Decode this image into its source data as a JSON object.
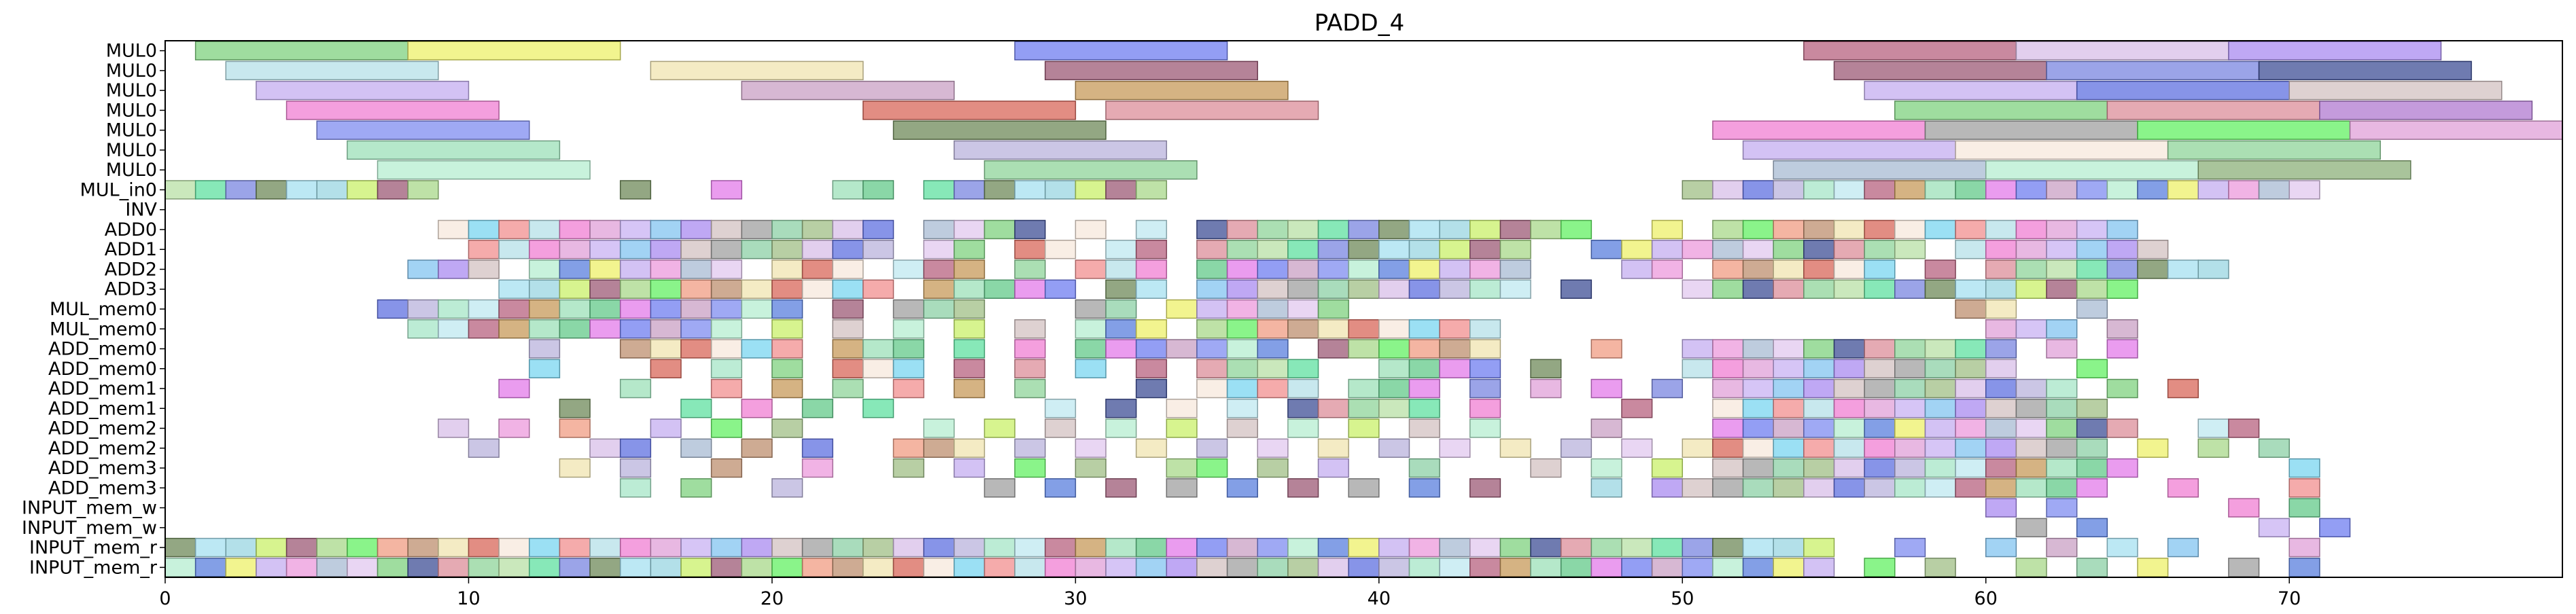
{
  "chart_data": {
    "type": "gantt",
    "title": "PADD_4",
    "xlabel": "",
    "ylabel": "",
    "xlim": [
      0,
      79
    ],
    "xticks": [
      0,
      10,
      20,
      30,
      40,
      50,
      60,
      70
    ],
    "grid": false,
    "legend": "none",
    "rows": [
      "MUL0",
      "MUL0",
      "MUL0",
      "MUL0",
      "MUL0",
      "MUL0",
      "MUL0",
      "MUL_in0",
      "INV",
      "ADD0",
      "ADD1",
      "ADD2",
      "ADD3",
      "MUL_mem0",
      "MUL_mem0",
      "ADD_mem0",
      "ADD_mem0",
      "ADD_mem1",
      "ADD_mem1",
      "ADD_mem2",
      "ADD_mem2",
      "ADD_mem3",
      "ADD_mem3",
      "INPUT_mem_w",
      "INPUT_mem_w",
      "INPUT_mem_r",
      "INPUT_mem_r"
    ],
    "palette": [
      "#7fd17f",
      "#eef06a",
      "#6f7ef0",
      "#b7627f",
      "#d8bfe8",
      "#a98bf0",
      "#b5e0e8",
      "#f0e4b0",
      "#9c5a75",
      "#7a86e0",
      "#3f4f96",
      "#c4aef0",
      "#c9a0c4",
      "#c79a5a",
      "#5f70e0",
      "#d3c2c2",
      "#f07fd3",
      "#d8675a",
      "#a8d889",
      "#6f8a5a",
      "#dc8e99",
      "#ec99dc",
      "#7f8cf0",
      "#9ce0b8",
      "#b9b3dc",
      "#a0a0a0",
      "#e0a0d8",
      "#f7e8dc",
      "#63f063",
      "#a6e0f0",
      "#8fd49a",
      "#a8bbd3",
      "#b6eed0",
      "#63c98a",
      "#a6e6c7",
      "#8cd0a6",
      "#c8b1f3",
      "#7ad5f0",
      "#f09c83",
      "#99d6e2",
      "#b8e0a6",
      "#e2c8ef",
      "#5a7fde",
      "#e37bea",
      "#bfe8f0",
      "#a0bf86",
      "#83c4f0",
      "#f28f8f",
      "#bd8f6f",
      "#c9f06a",
      "#5fe0a0"
    ],
    "bars": [
      {
        "row": 0,
        "start": 1,
        "end": 8,
        "color": "#7fd17f"
      },
      {
        "row": 0,
        "start": 8,
        "end": 15,
        "color": "#eef06a"
      },
      {
        "row": 0,
        "start": 28,
        "end": 35,
        "color": "#6f7ef0"
      },
      {
        "row": 0,
        "start": 54,
        "end": 61,
        "color": "#b7627f"
      },
      {
        "row": 0,
        "start": 61,
        "end": 68,
        "color": "#d8bfe8"
      },
      {
        "row": 0,
        "start": 68,
        "end": 75,
        "color": "#a98bf0"
      },
      {
        "row": 1,
        "start": 2,
        "end": 9,
        "color": "#b5e0e8"
      },
      {
        "row": 1,
        "start": 16,
        "end": 23,
        "color": "#f0e4b0"
      },
      {
        "row": 1,
        "start": 29,
        "end": 36,
        "color": "#9c5a75"
      },
      {
        "row": 1,
        "start": 55,
        "end": 62,
        "color": "#9c5a75"
      },
      {
        "row": 1,
        "start": 62,
        "end": 69,
        "color": "#7a86e0"
      },
      {
        "row": 1,
        "start": 69,
        "end": 76,
        "color": "#3f4f96"
      },
      {
        "row": 2,
        "start": 3,
        "end": 10,
        "color": "#c4aef0"
      },
      {
        "row": 2,
        "start": 19,
        "end": 26,
        "color": "#c9a0c4"
      },
      {
        "row": 2,
        "start": 30,
        "end": 37,
        "color": "#c79a5a"
      },
      {
        "row": 2,
        "start": 56,
        "end": 63,
        "color": "#c4aef0"
      },
      {
        "row": 2,
        "start": 63,
        "end": 70,
        "color": "#5f70e0"
      },
      {
        "row": 2,
        "start": 70,
        "end": 77,
        "color": "#d3c2c2"
      },
      {
        "row": 3,
        "start": 4,
        "end": 11,
        "color": "#f07fd3"
      },
      {
        "row": 3,
        "start": 23,
        "end": 30,
        "color": "#d8675a"
      },
      {
        "row": 3,
        "start": 31,
        "end": 38,
        "color": "#dc8e99"
      },
      {
        "row": 3,
        "start": 57,
        "end": 64,
        "color": "#7fd17f"
      },
      {
        "row": 3,
        "start": 64,
        "end": 71,
        "color": "#dc8e99"
      },
      {
        "row": 3,
        "start": 71,
        "end": 78,
        "color": "#b07ad0"
      },
      {
        "row": 4,
        "start": 5,
        "end": 12,
        "color": "#7f8cf0"
      },
      {
        "row": 4,
        "start": 24,
        "end": 31,
        "color": "#6f8a5a"
      },
      {
        "row": 4,
        "start": 51,
        "end": 58,
        "color": "#f07fd3"
      },
      {
        "row": 4,
        "start": 58,
        "end": 65,
        "color": "#a0a0a0"
      },
      {
        "row": 4,
        "start": 65,
        "end": 72,
        "color": "#63f063"
      },
      {
        "row": 4,
        "start": 72,
        "end": 79,
        "color": "#e0a0d8"
      },
      {
        "row": 5,
        "start": 6,
        "end": 13,
        "color": "#9ce0b8"
      },
      {
        "row": 5,
        "start": 26,
        "end": 33,
        "color": "#b9b3dc"
      },
      {
        "row": 5,
        "start": 52,
        "end": 59,
        "color": "#c4aef0"
      },
      {
        "row": 5,
        "start": 59,
        "end": 66,
        "color": "#f7e8dc"
      },
      {
        "row": 5,
        "start": 66,
        "end": 73,
        "color": "#8fd49a"
      },
      {
        "row": 6,
        "start": 7,
        "end": 14,
        "color": "#b6eed0"
      },
      {
        "row": 6,
        "start": 27,
        "end": 34,
        "color": "#8fd49a"
      },
      {
        "row": 6,
        "start": 53,
        "end": 60,
        "color": "#a8bbd3"
      },
      {
        "row": 6,
        "start": 60,
        "end": 67,
        "color": "#b6eed0"
      },
      {
        "row": 6,
        "start": 67,
        "end": 74,
        "color": "#8cb07a"
      }
    ],
    "cells_per_row": [
      [],
      [],
      [],
      [],
      [],
      [],
      [],
      [
        0,
        1,
        2,
        3,
        4,
        5,
        6,
        7,
        8,
        15,
        18,
        22,
        23,
        25,
        26,
        27,
        28,
        29,
        30,
        31,
        32,
        50,
        51,
        52,
        53,
        54,
        55,
        56,
        57,
        58,
        59,
        60,
        61,
        62,
        63,
        64,
        65,
        66,
        67,
        68,
        69,
        70
      ],
      [],
      [
        9,
        10,
        11,
        12,
        13,
        14,
        15,
        16,
        17,
        18,
        19,
        20,
        21,
        22,
        23,
        25,
        26,
        27,
        28,
        30,
        32,
        34,
        35,
        36,
        37,
        38,
        39,
        40,
        41,
        42,
        43,
        44,
        45,
        46,
        49,
        51,
        52,
        53,
        54,
        55,
        56,
        57,
        58,
        59,
        60,
        61,
        62,
        63,
        64
      ],
      [
        10,
        11,
        12,
        13,
        14,
        15,
        16,
        17,
        18,
        19,
        20,
        21,
        22,
        23,
        25,
        26,
        28,
        29,
        31,
        32,
        34,
        35,
        36,
        37,
        38,
        39,
        40,
        41,
        42,
        43,
        44,
        47,
        48,
        49,
        50,
        51,
        52,
        53,
        54,
        55,
        56,
        57,
        59,
        60,
        61,
        62,
        63,
        64,
        65
      ],
      [
        8,
        9,
        10,
        12,
        13,
        14,
        15,
        16,
        17,
        18,
        20,
        21,
        22,
        24,
        25,
        26,
        28,
        30,
        31,
        32,
        34,
        35,
        36,
        37,
        38,
        39,
        40,
        41,
        42,
        43,
        44,
        48,
        49,
        51,
        52,
        53,
        54,
        55,
        56,
        58,
        60,
        61,
        62,
        63,
        64,
        65,
        66,
        67
      ],
      [
        11,
        12,
        13,
        14,
        15,
        16,
        17,
        18,
        19,
        20,
        21,
        22,
        23,
        25,
        26,
        27,
        28,
        29,
        31,
        32,
        34,
        35,
        36,
        37,
        38,
        39,
        40,
        41,
        42,
        43,
        44,
        46,
        50,
        51,
        52,
        53,
        54,
        55,
        56,
        57,
        58,
        59,
        60,
        61,
        62,
        63,
        64
      ],
      [
        7,
        8,
        9,
        10,
        11,
        12,
        13,
        14,
        15,
        16,
        17,
        18,
        19,
        20,
        22,
        24,
        25,
        26,
        30,
        31,
        33,
        34,
        35,
        36,
        37,
        38,
        59,
        60,
        63
      ],
      [
        8,
        9,
        10,
        11,
        12,
        13,
        14,
        15,
        16,
        17,
        18,
        20,
        22,
        24,
        26,
        28,
        30,
        31,
        32,
        34,
        35,
        36,
        37,
        38,
        39,
        40,
        41,
        42,
        43,
        60,
        61,
        62,
        64
      ],
      [
        12,
        15,
        16,
        17,
        18,
        19,
        20,
        22,
        23,
        24,
        26,
        28,
        30,
        31,
        32,
        33,
        34,
        35,
        36,
        38,
        39,
        40,
        41,
        42,
        43,
        47,
        50,
        51,
        52,
        53,
        54,
        55,
        56,
        57,
        58,
        59,
        60,
        62,
        64
      ],
      [
        12,
        16,
        18,
        20,
        22,
        23,
        24,
        26,
        28,
        30,
        32,
        34,
        35,
        36,
        37,
        40,
        41,
        42,
        43,
        45,
        50,
        51,
        52,
        53,
        54,
        55,
        56,
        57,
        58,
        59,
        60,
        63
      ],
      [
        11,
        15,
        18,
        20,
        22,
        24,
        26,
        28,
        32,
        34,
        35,
        36,
        37,
        39,
        40,
        41,
        43,
        45,
        47,
        49,
        51,
        52,
        53,
        54,
        55,
        56,
        57,
        58,
        59,
        60,
        61,
        62,
        64,
        66
      ],
      [
        13,
        17,
        19,
        21,
        23,
        29,
        31,
        33,
        35,
        37,
        38,
        39,
        40,
        41,
        43,
        48,
        51,
        52,
        53,
        54,
        55,
        56,
        57,
        58,
        59,
        60,
        61,
        62,
        63
      ],
      [
        9,
        11,
        13,
        16,
        18,
        20,
        25,
        27,
        29,
        31,
        33,
        35,
        37,
        39,
        41,
        43,
        47,
        51,
        52,
        53,
        54,
        55,
        56,
        57,
        58,
        59,
        60,
        61,
        62,
        63,
        64,
        67,
        68
      ],
      [
        10,
        14,
        15,
        17,
        19,
        21,
        24,
        25,
        26,
        28,
        30,
        32,
        34,
        36,
        38,
        40,
        42,
        44,
        46,
        48,
        50,
        51,
        52,
        53,
        54,
        55,
        56,
        57,
        58,
        59,
        60,
        61,
        62,
        63,
        65,
        67,
        69
      ],
      [
        13,
        15,
        18,
        21,
        24,
        26,
        28,
        30,
        33,
        34,
        36,
        38,
        41,
        45,
        47,
        49,
        51,
        52,
        53,
        54,
        55,
        56,
        57,
        58,
        59,
        60,
        61,
        62,
        63,
        64,
        70
      ],
      [
        15,
        17,
        20,
        27,
        29,
        31,
        33,
        35,
        37,
        39,
        41,
        43,
        47,
        49,
        50,
        51,
        52,
        53,
        54,
        55,
        56,
        57,
        58,
        59,
        60,
        61,
        62,
        63,
        66,
        70
      ],
      [
        60,
        62,
        68,
        70
      ],
      [
        61,
        63,
        69,
        71
      ],
      [
        0,
        1,
        2,
        3,
        4,
        5,
        6,
        7,
        8,
        9,
        10,
        11,
        12,
        13,
        14,
        15,
        16,
        17,
        18,
        19,
        20,
        21,
        22,
        23,
        24,
        25,
        26,
        27,
        28,
        29,
        30,
        31,
        32,
        33,
        34,
        35,
        36,
        37,
        38,
        39,
        40,
        41,
        42,
        43,
        44,
        45,
        46,
        47,
        48,
        49,
        50,
        51,
        52,
        53,
        54,
        57,
        60,
        62,
        64,
        66,
        70
      ],
      [
        0,
        1,
        2,
        3,
        4,
        5,
        6,
        7,
        8,
        9,
        10,
        11,
        12,
        13,
        14,
        15,
        16,
        17,
        18,
        19,
        20,
        21,
        22,
        23,
        24,
        25,
        26,
        27,
        28,
        29,
        30,
        31,
        32,
        33,
        34,
        35,
        36,
        37,
        38,
        39,
        40,
        41,
        42,
        43,
        44,
        45,
        46,
        47,
        48,
        49,
        50,
        51,
        52,
        53,
        54,
        56,
        58,
        61,
        63,
        65,
        68,
        70
      ]
    ]
  }
}
